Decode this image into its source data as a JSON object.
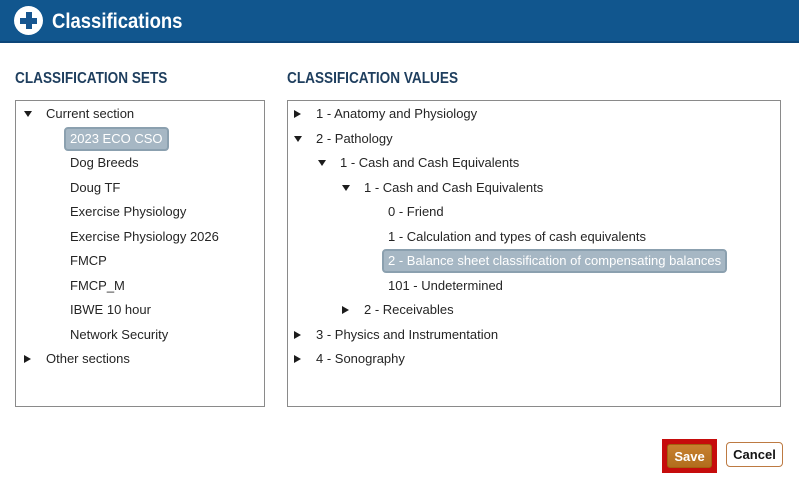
{
  "header": {
    "title": "Classifications",
    "icon": "plus-circle-icon"
  },
  "colors": {
    "header_bg": "#11568e",
    "header_border": "#0c4679",
    "heading_text": "#1e3e5e",
    "selected_bg": "#a6b7c4",
    "selected_border": "#8ba0af",
    "save_bg": "#bb762a",
    "highlight_red": "#c60c0c",
    "cancel_border": "#bd7a42"
  },
  "panels": {
    "sets": {
      "heading": "CLASSIFICATION SETS",
      "items": [
        {
          "label": "Current section",
          "level": 0,
          "state": "expanded",
          "selected": false
        },
        {
          "label": "2023 ECO CSO",
          "level": 1,
          "state": "leaf",
          "selected": true
        },
        {
          "label": "Dog Breeds",
          "level": 1,
          "state": "leaf",
          "selected": false
        },
        {
          "label": "Doug TF",
          "level": 1,
          "state": "leaf",
          "selected": false
        },
        {
          "label": "Exercise Physiology",
          "level": 1,
          "state": "leaf",
          "selected": false
        },
        {
          "label": "Exercise Physiology 2026",
          "level": 1,
          "state": "leaf",
          "selected": false
        },
        {
          "label": "FMCP",
          "level": 1,
          "state": "leaf",
          "selected": false
        },
        {
          "label": "FMCP_M",
          "level": 1,
          "state": "leaf",
          "selected": false
        },
        {
          "label": "IBWE 10 hour",
          "level": 1,
          "state": "leaf",
          "selected": false
        },
        {
          "label": "Network Security",
          "level": 1,
          "state": "leaf",
          "selected": false
        },
        {
          "label": "Other sections",
          "level": 0,
          "state": "collapsed",
          "selected": false
        }
      ]
    },
    "values": {
      "heading": "CLASSIFICATION VALUES",
      "items": [
        {
          "label": "1 - Anatomy and Physiology",
          "level": 0,
          "state": "collapsed",
          "selected": false
        },
        {
          "label": "2 - Pathology",
          "level": 0,
          "state": "expanded",
          "selected": false
        },
        {
          "label": "1 - Cash and Cash Equivalents",
          "level": 1,
          "state": "expanded",
          "selected": false
        },
        {
          "label": "1 - Cash and Cash Equivalents",
          "level": 2,
          "state": "expanded",
          "selected": false
        },
        {
          "label": "0 - Friend",
          "level": 3,
          "state": "leaf",
          "selected": false
        },
        {
          "label": "1 - Calculation and types of cash equivalents",
          "level": 3,
          "state": "leaf",
          "selected": false
        },
        {
          "label": "2 - Balance sheet classification of compensating balances",
          "level": 3,
          "state": "leaf",
          "selected": true
        },
        {
          "label": "101 - Undetermined",
          "level": 3,
          "state": "leaf",
          "selected": false
        },
        {
          "label": "2 - Receivables",
          "level": 2,
          "state": "collapsed",
          "selected": false
        },
        {
          "label": "3 - Physics and Instrumentation",
          "level": 0,
          "state": "collapsed",
          "selected": false
        },
        {
          "label": "4 - Sonography",
          "level": 0,
          "state": "collapsed",
          "selected": false
        }
      ]
    }
  },
  "buttons": {
    "save": "Save",
    "cancel": "Cancel"
  }
}
